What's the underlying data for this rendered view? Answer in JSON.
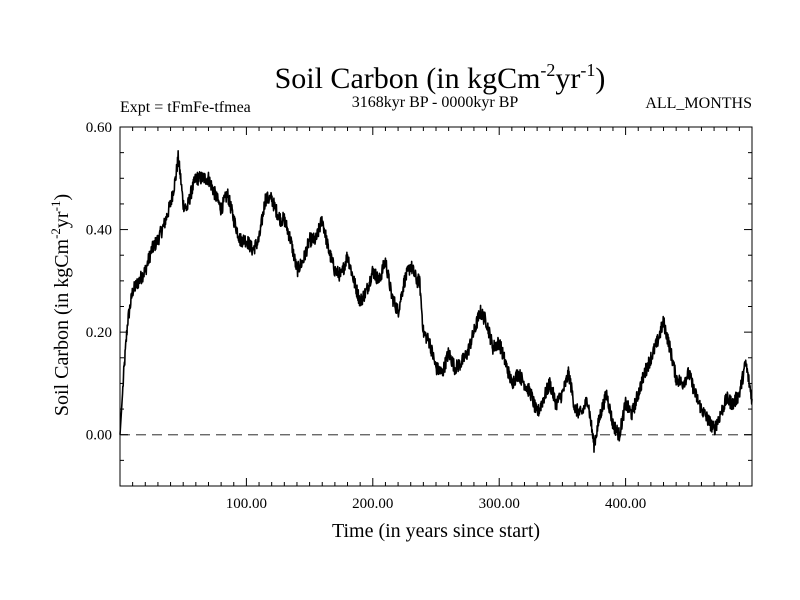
{
  "chart_data": {
    "type": "line",
    "title_main": "Soil Carbon (in kgCm",
    "title_exp1": "-2",
    "title_mid": "yr",
    "title_exp2": "-1",
    "title_end": ")",
    "subtitle_left": "Expt = tFmFe-tfmea",
    "subtitle_center": "3168kyr BP - 0000kyr BP",
    "subtitle_right": "ALL_MONTHS",
    "xlabel": "Time (in years since start)",
    "ylabel_main": "Soil Carbon (in kgCm",
    "ylabel_exp1": "-2",
    "ylabel_mid": "yr",
    "ylabel_exp2": "-1",
    "ylabel_end": ")",
    "xlim": [
      0,
      500
    ],
    "ylim": [
      -0.1,
      0.6
    ],
    "xticks": [
      100,
      200,
      300,
      400
    ],
    "xtick_labels": [
      "100.00",
      "200.00",
      "300.00",
      "400.00"
    ],
    "yticks": [
      0.6,
      0.4,
      0.2,
      0.0
    ],
    "ytick_labels": [
      "0.60",
      "0.40",
      "0.20",
      "0.00"
    ],
    "reference_line_y": 0.0,
    "series": [
      {
        "name": "Soil Carbon",
        "color": "#000000",
        "x": [
          0,
          3,
          6,
          10,
          15,
          20,
          25,
          30,
          35,
          40,
          44,
          46,
          48,
          50,
          53,
          56,
          60,
          65,
          70,
          75,
          80,
          85,
          90,
          95,
          100,
          105,
          110,
          115,
          120,
          123,
          127,
          130,
          135,
          140,
          145,
          150,
          155,
          160,
          165,
          170,
          175,
          180,
          185,
          190,
          195,
          200,
          205,
          210,
          215,
          220,
          225,
          230,
          235,
          237,
          240,
          245,
          250,
          255,
          260,
          265,
          270,
          275,
          280,
          285,
          290,
          295,
          300,
          305,
          310,
          315,
          320,
          325,
          330,
          335,
          340,
          345,
          350,
          355,
          360,
          365,
          370,
          375,
          380,
          385,
          390,
          395,
          400,
          405,
          410,
          415,
          420,
          425,
          430,
          435,
          440,
          445,
          450,
          455,
          460,
          465,
          470,
          475,
          480,
          485,
          490,
          495,
          500
        ],
        "y": [
          0.0,
          0.12,
          0.22,
          0.28,
          0.3,
          0.32,
          0.36,
          0.38,
          0.41,
          0.45,
          0.5,
          0.54,
          0.5,
          0.45,
          0.44,
          0.47,
          0.5,
          0.5,
          0.5,
          0.47,
          0.44,
          0.47,
          0.42,
          0.38,
          0.38,
          0.36,
          0.38,
          0.46,
          0.46,
          0.44,
          0.42,
          0.42,
          0.38,
          0.32,
          0.34,
          0.38,
          0.38,
          0.42,
          0.36,
          0.32,
          0.31,
          0.35,
          0.3,
          0.26,
          0.28,
          0.32,
          0.3,
          0.34,
          0.27,
          0.24,
          0.3,
          0.33,
          0.3,
          0.3,
          0.2,
          0.18,
          0.13,
          0.12,
          0.16,
          0.13,
          0.14,
          0.16,
          0.2,
          0.24,
          0.22,
          0.17,
          0.18,
          0.14,
          0.1,
          0.12,
          0.1,
          0.08,
          0.04,
          0.07,
          0.1,
          0.06,
          0.08,
          0.12,
          0.05,
          0.04,
          0.07,
          -0.02,
          0.04,
          0.08,
          0.02,
          0.0,
          0.06,
          0.04,
          0.08,
          0.12,
          0.15,
          0.18,
          0.22,
          0.17,
          0.11,
          0.1,
          0.12,
          0.08,
          0.05,
          0.03,
          0.01,
          0.04,
          0.07,
          0.06,
          0.08,
          0.14,
          0.07
        ]
      }
    ]
  }
}
